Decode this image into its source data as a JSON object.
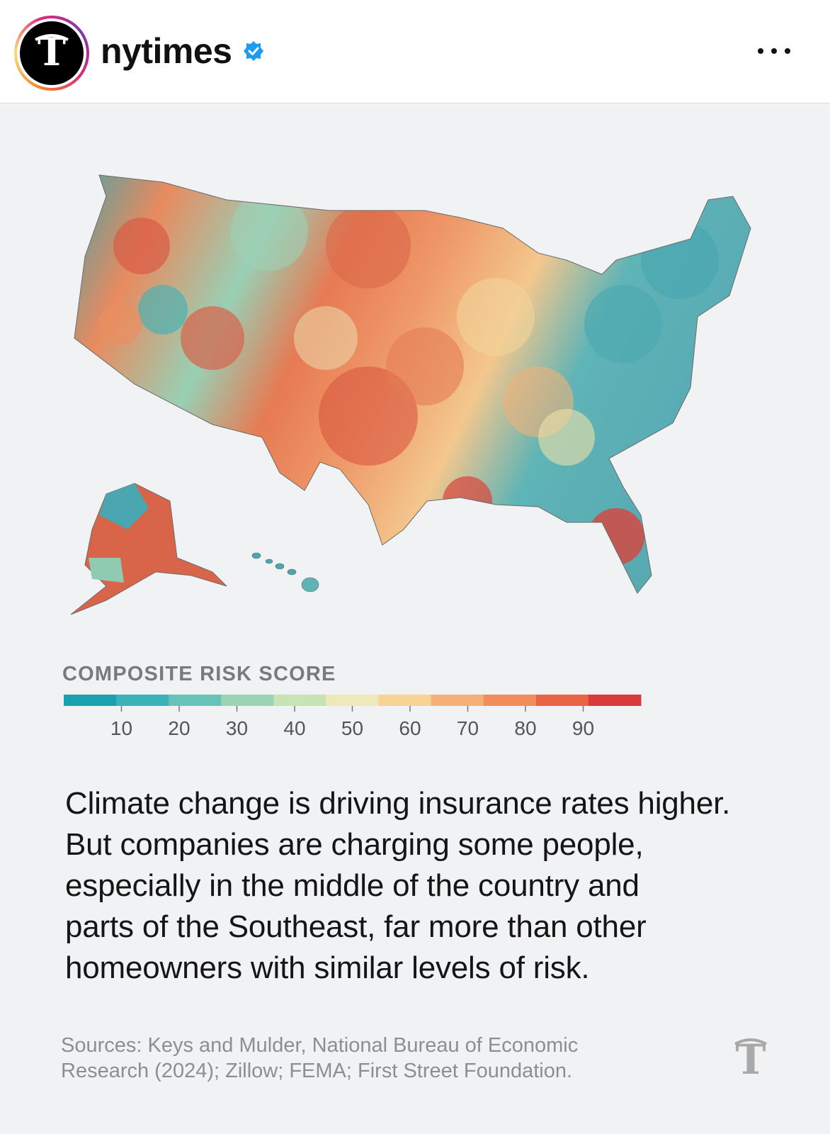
{
  "header": {
    "username": "nytimes",
    "verified": true,
    "avatar_icon": "nyt-t-logo-icon",
    "more_icon": "more-options-icon"
  },
  "graphic": {
    "legend_title": "COMPOSITE RISK SCORE",
    "legend_ticks": [
      "10",
      "20",
      "30",
      "40",
      "50",
      "60",
      "70",
      "80",
      "90"
    ],
    "legend_colors": [
      "#1aa0b0",
      "#3ab2b8",
      "#67c3b8",
      "#98d4b5",
      "#c8e3b5",
      "#eee9b8",
      "#f7d394",
      "#f5b077",
      "#f08d5b",
      "#e76545",
      "#d93a3b"
    ],
    "headline_lines": [
      "Climate change is driving insurance rates higher.",
      "But companies are charging some people,",
      "especially in the middle of the country and",
      "parts of the Southeast, far more than other",
      "homeowners with similar levels of risk."
    ],
    "sources_lines": [
      "Sources: Keys and Mulder, National Bureau of Economic",
      "Research (2024); Zillow; FEMA; First Street Foundation."
    ],
    "map_alt": "Map of U.S. counties colored by composite risk score"
  }
}
